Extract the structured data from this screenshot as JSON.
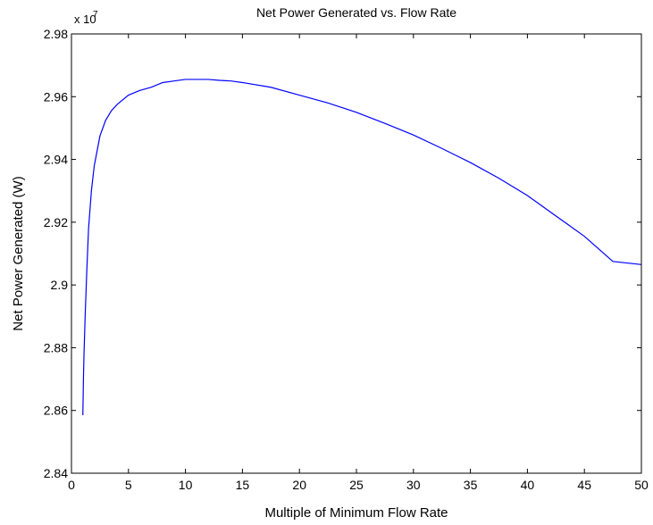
{
  "chart_data": {
    "type": "line",
    "title": "Net Power Generated vs. Flow Rate",
    "xlabel": "Multiple of Minimum Flow Rate",
    "ylabel": "Net Power Generated (W)",
    "y_multiplier_label": "x 10",
    "y_multiplier_exponent": "7",
    "xlim": [
      0,
      50
    ],
    "ylim": [
      2.84,
      2.98
    ],
    "x_ticks": [
      0,
      5,
      10,
      15,
      20,
      25,
      30,
      35,
      40,
      45,
      50
    ],
    "x_tick_labels": [
      "0",
      "5",
      "10",
      "15",
      "20",
      "25",
      "30",
      "35",
      "40",
      "45",
      "50"
    ],
    "y_ticks": [
      2.84,
      2.86,
      2.88,
      2.9,
      2.92,
      2.94,
      2.96,
      2.98
    ],
    "y_tick_labels": [
      "2.84",
      "2.86",
      "2.88",
      "2.9",
      "2.92",
      "2.94",
      "2.96",
      "2.98"
    ],
    "grid": false,
    "line_color": "#0000ff",
    "series": [
      {
        "x": [
          1,
          1.05,
          1.1,
          1.2,
          1.35,
          1.5,
          1.75,
          2,
          2.5,
          3,
          3.5,
          4,
          5,
          6,
          7,
          8,
          9,
          10,
          11,
          12,
          13,
          14,
          15,
          17.5,
          20,
          22.5,
          25,
          27.5,
          30,
          32.5,
          35,
          37.5,
          40,
          42.5,
          45,
          47.5,
          50
        ],
        "y": [
          2.8585,
          2.87,
          2.878,
          2.89,
          2.905,
          2.918,
          2.93,
          2.938,
          2.9475,
          2.9525,
          2.9555,
          2.9575,
          2.9605,
          2.962,
          2.963,
          2.9645,
          2.965,
          2.9655,
          2.9655,
          2.9655,
          2.9652,
          2.965,
          2.9645,
          2.963,
          2.9605,
          2.958,
          2.955,
          2.9515,
          2.9478,
          2.9435,
          2.939,
          2.934,
          2.9285,
          2.922,
          2.9155,
          2.9075,
          2.9065
        ]
      }
    ]
  }
}
